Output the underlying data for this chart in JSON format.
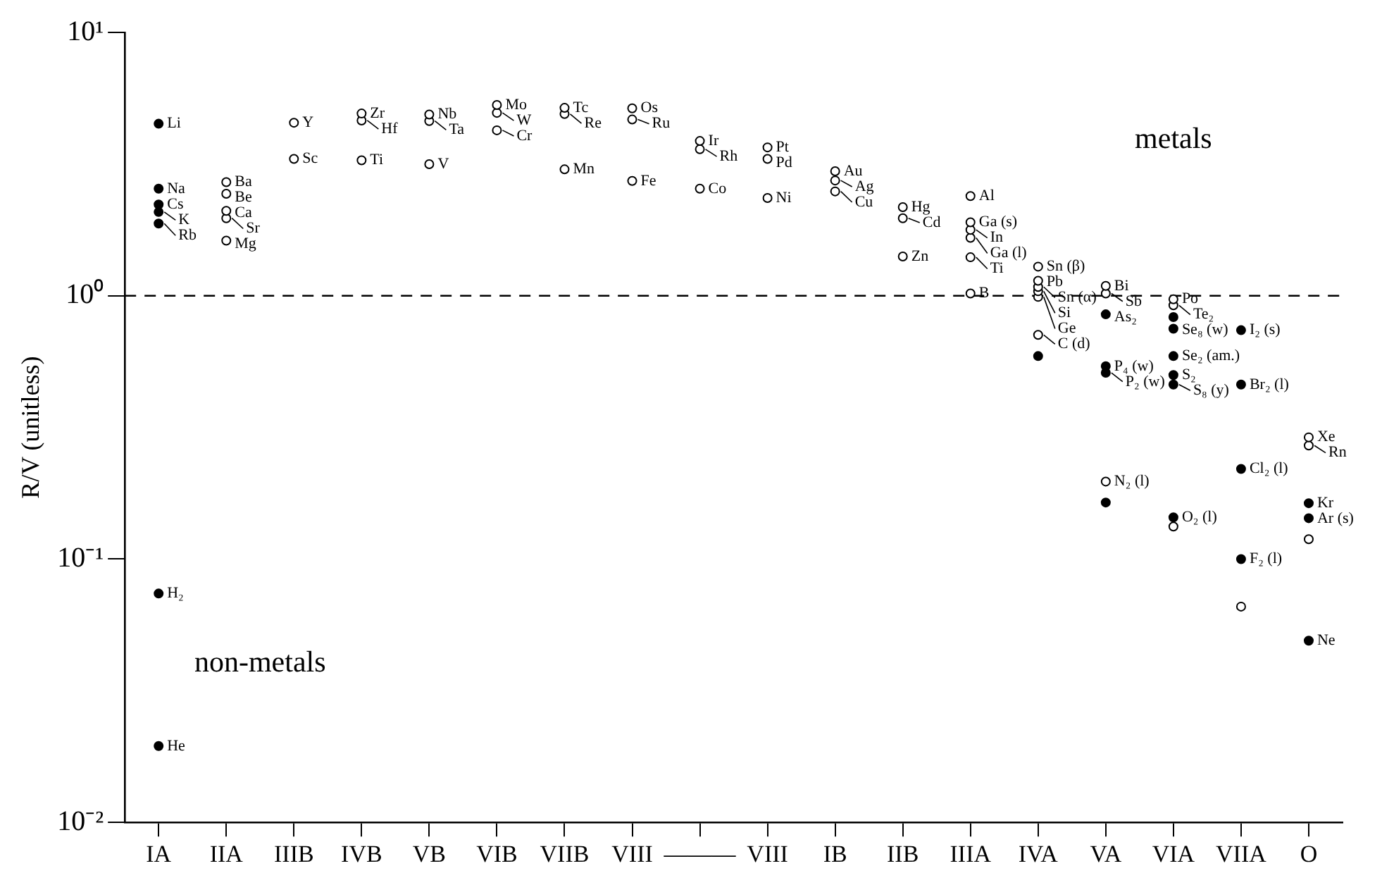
{
  "chart_data": {
    "type": "scatter",
    "ylabel": "R/V (unitless)",
    "categories": [
      "IA",
      "IIA",
      "IIIB",
      "IVB",
      "VB",
      "VIB",
      "VIIB",
      "VIII",
      "———",
      "VIII",
      "IB",
      "IIB",
      "IIIA",
      "IVA",
      "VA",
      "VIA",
      "VIIA",
      "O"
    ],
    "log": "y",
    "ylim": [
      0.01,
      10
    ],
    "yticks": [
      {
        "value": 0.01,
        "label": "10⁻²"
      },
      {
        "value": 0.1,
        "label": "10⁻¹"
      },
      {
        "value": 1,
        "label": "10⁰"
      },
      {
        "value": 10,
        "label": "10¹"
      }
    ],
    "grid": false,
    "legend": false,
    "marker": "circle",
    "ref_lines": [
      {
        "axis": "y",
        "value": 1,
        "line_style": "dashed",
        "color": "#000000"
      }
    ],
    "annotations": [
      "metals",
      "non-metals"
    ],
    "series": [
      {
        "color": "#ffffff",
        "values": [
          null,
          2.7,
          4.54,
          4.92,
          4.88,
          5.3,
          5.17,
          5.15,
          3.87,
          3.66,
          2.97,
          2.17,
          2.39,
          1.29,
          1.09,
          0.97,
          0.066,
          0.29
        ],
        "value_labels": [
          null,
          "Ba",
          "Y",
          "Zr",
          "Nb",
          "Mo",
          "Tc",
          "Os",
          "Ir",
          "Pt",
          "Au",
          "Hg",
          "Al",
          "Sn (β)",
          "Bi",
          "Po",
          null,
          "Xe"
        ]
      },
      {
        "color": "#ffffff",
        "values": [
          null,
          2.44,
          3.31,
          4.63,
          4.61,
          4.95,
          4.9,
          4.67,
          3.6,
          3.31,
          2.74,
          1.97,
          1.9,
          1.14,
          1.02,
          0.92,
          null,
          0.27
        ],
        "value_labels": [
          null,
          "Be",
          "Sc",
          "Hf",
          "Ta",
          "W",
          "Re",
          "Ru",
          "Rh",
          "Pd",
          "Ag",
          "Cd",
          "Ga (s)",
          "Pb",
          "Sb",
          "Te₂",
          null,
          "Rn"
        ]
      },
      {
        "color": "#ffffff",
        "values": [
          null,
          2.1,
          null,
          3.27,
          3.16,
          4.25,
          3.02,
          2.73,
          2.55,
          2.35,
          2.49,
          1.41,
          1.78,
          1.08,
          0.197,
          0.133,
          null,
          0.119
        ],
        "value_labels": [
          null,
          "Ca",
          null,
          "Ti",
          "V",
          "Cr",
          "Mn",
          "Fe",
          "Co",
          "Ni",
          "Cu",
          "Zn",
          "In",
          "Sn (α)",
          "N₂ (l)",
          null,
          null,
          null
        ]
      },
      {
        "color": "#ffffff",
        "values": [
          null,
          1.97,
          null,
          null,
          null,
          null,
          null,
          null,
          null,
          null,
          null,
          null,
          1.66,
          1.04,
          null,
          null,
          null,
          null
        ],
        "value_labels": [
          null,
          "Sr",
          null,
          null,
          null,
          null,
          null,
          null,
          null,
          null,
          null,
          null,
          "Ga (l)",
          "Si",
          null,
          null,
          null,
          null
        ]
      },
      {
        "color": "#ffffff",
        "values": [
          null,
          1.62,
          null,
          null,
          null,
          null,
          null,
          null,
          null,
          null,
          null,
          null,
          1.4,
          0.99,
          null,
          null,
          null,
          null
        ],
        "value_labels": [
          null,
          "Mg",
          null,
          null,
          null,
          null,
          null,
          null,
          null,
          null,
          null,
          null,
          "Ti",
          "Ge",
          null,
          null,
          null,
          null
        ]
      },
      {
        "color": "#ffffff",
        "values": [
          null,
          null,
          null,
          null,
          null,
          null,
          null,
          null,
          null,
          null,
          null,
          null,
          1.02,
          0.71,
          null,
          null,
          null,
          null
        ],
        "value_labels": [
          null,
          null,
          null,
          null,
          null,
          null,
          null,
          null,
          null,
          null,
          null,
          null,
          "B",
          "C (d)",
          null,
          null,
          null,
          null
        ]
      },
      {
        "color": "#000000",
        "values": [
          4.5,
          null,
          null,
          null,
          null,
          null,
          null,
          null,
          null,
          null,
          null,
          null,
          null,
          0.59,
          0.85,
          0.83,
          0.74,
          0.163
        ],
        "value_labels": [
          "Li",
          null,
          null,
          null,
          null,
          null,
          null,
          null,
          null,
          null,
          null,
          null,
          null,
          null,
          "As₂",
          null,
          "I₂ (s)",
          "Kr"
        ]
      },
      {
        "color": "#000000",
        "values": [
          2.55,
          null,
          null,
          null,
          null,
          null,
          null,
          null,
          null,
          null,
          null,
          null,
          null,
          null,
          0.54,
          0.75,
          0.46,
          0.143
        ],
        "value_labels": [
          "Na",
          null,
          null,
          null,
          null,
          null,
          null,
          null,
          null,
          null,
          null,
          null,
          null,
          null,
          "P₄ (w)",
          "Se₈ (w)",
          "Br₂ (l)",
          "Ar (s)"
        ]
      },
      {
        "color": "#000000",
        "values": [
          2.22,
          null,
          null,
          null,
          null,
          null,
          null,
          null,
          null,
          null,
          null,
          null,
          null,
          null,
          0.51,
          0.59,
          0.22,
          0.049
        ],
        "value_labels": [
          "Cs",
          null,
          null,
          null,
          null,
          null,
          null,
          null,
          null,
          null,
          null,
          null,
          null,
          null,
          "P₂ (w)",
          "Se₂ (am.)",
          "Cl₂ (l)",
          "Ne"
        ]
      },
      {
        "color": "#000000",
        "values": [
          2.08,
          null,
          null,
          null,
          null,
          null,
          null,
          null,
          null,
          null,
          null,
          null,
          null,
          null,
          0.164,
          0.5,
          0.1,
          null
        ],
        "value_labels": [
          "K",
          null,
          null,
          null,
          null,
          null,
          null,
          null,
          null,
          null,
          null,
          null,
          null,
          null,
          null,
          "S₂",
          "F₂ (l)",
          null
        ]
      },
      {
        "color": "#000000",
        "values": [
          1.88,
          null,
          null,
          null,
          null,
          null,
          null,
          null,
          null,
          null,
          null,
          null,
          null,
          null,
          null,
          0.46,
          null,
          null
        ],
        "value_labels": [
          "Rb",
          null,
          null,
          null,
          null,
          null,
          null,
          null,
          null,
          null,
          null,
          null,
          null,
          null,
          null,
          "S₈ (y)",
          null,
          null
        ]
      },
      {
        "color": "#000000",
        "values": [
          0.074,
          null,
          null,
          null,
          null,
          null,
          null,
          null,
          null,
          null,
          null,
          null,
          null,
          null,
          null,
          0.144,
          null,
          null
        ],
        "value_labels": [
          "H₂",
          null,
          null,
          null,
          null,
          null,
          null,
          null,
          null,
          null,
          null,
          null,
          null,
          null,
          null,
          "O₂ (l)",
          null,
          null
        ]
      },
      {
        "color": "#000000",
        "values": [
          0.0195,
          null,
          null,
          null,
          null,
          null,
          null,
          null,
          null,
          null,
          null,
          null,
          null,
          null,
          null,
          null,
          null,
          null
        ],
        "value_labels": [
          "He",
          null,
          null,
          null,
          null,
          null,
          null,
          null,
          null,
          null,
          null,
          null,
          null,
          null,
          null,
          null,
          null,
          null
        ]
      }
    ]
  }
}
